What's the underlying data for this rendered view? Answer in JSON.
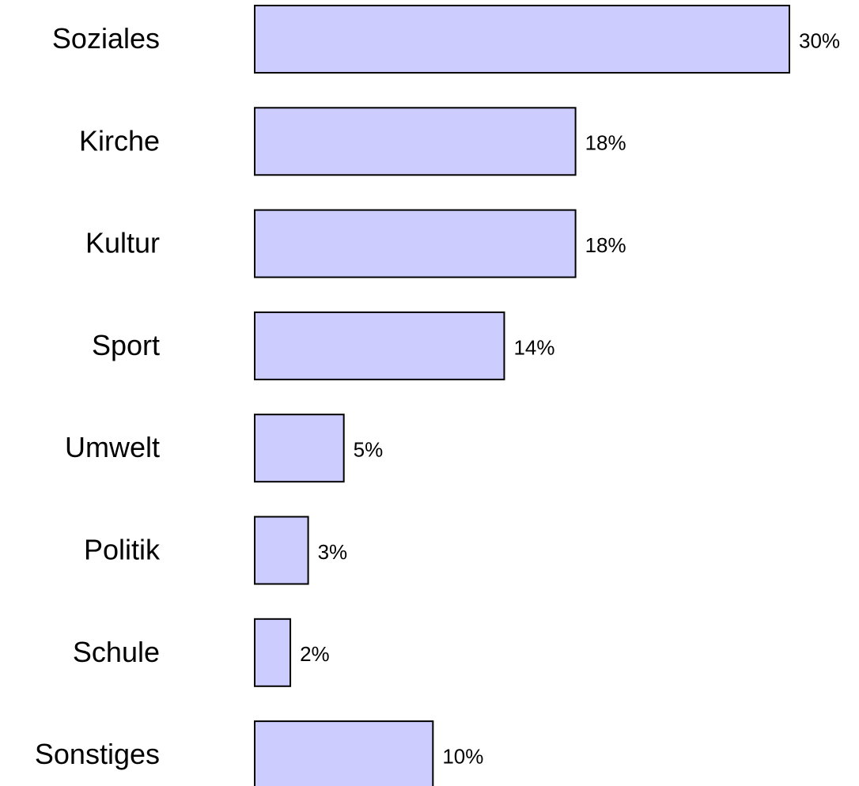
{
  "chart_data": {
    "type": "barh",
    "categories": [
      "Soziales",
      "Kirche",
      "Kultur",
      "Sport",
      "Umwelt",
      "Politik",
      "Schule",
      "Sonstiges"
    ],
    "values": [
      30,
      18,
      18,
      14,
      5,
      3,
      2,
      10
    ],
    "value_labels": [
      "30%",
      "18%",
      "18%",
      "14%",
      "5%",
      "3%",
      "2%",
      "10%"
    ],
    "color": "#ccccff"
  }
}
